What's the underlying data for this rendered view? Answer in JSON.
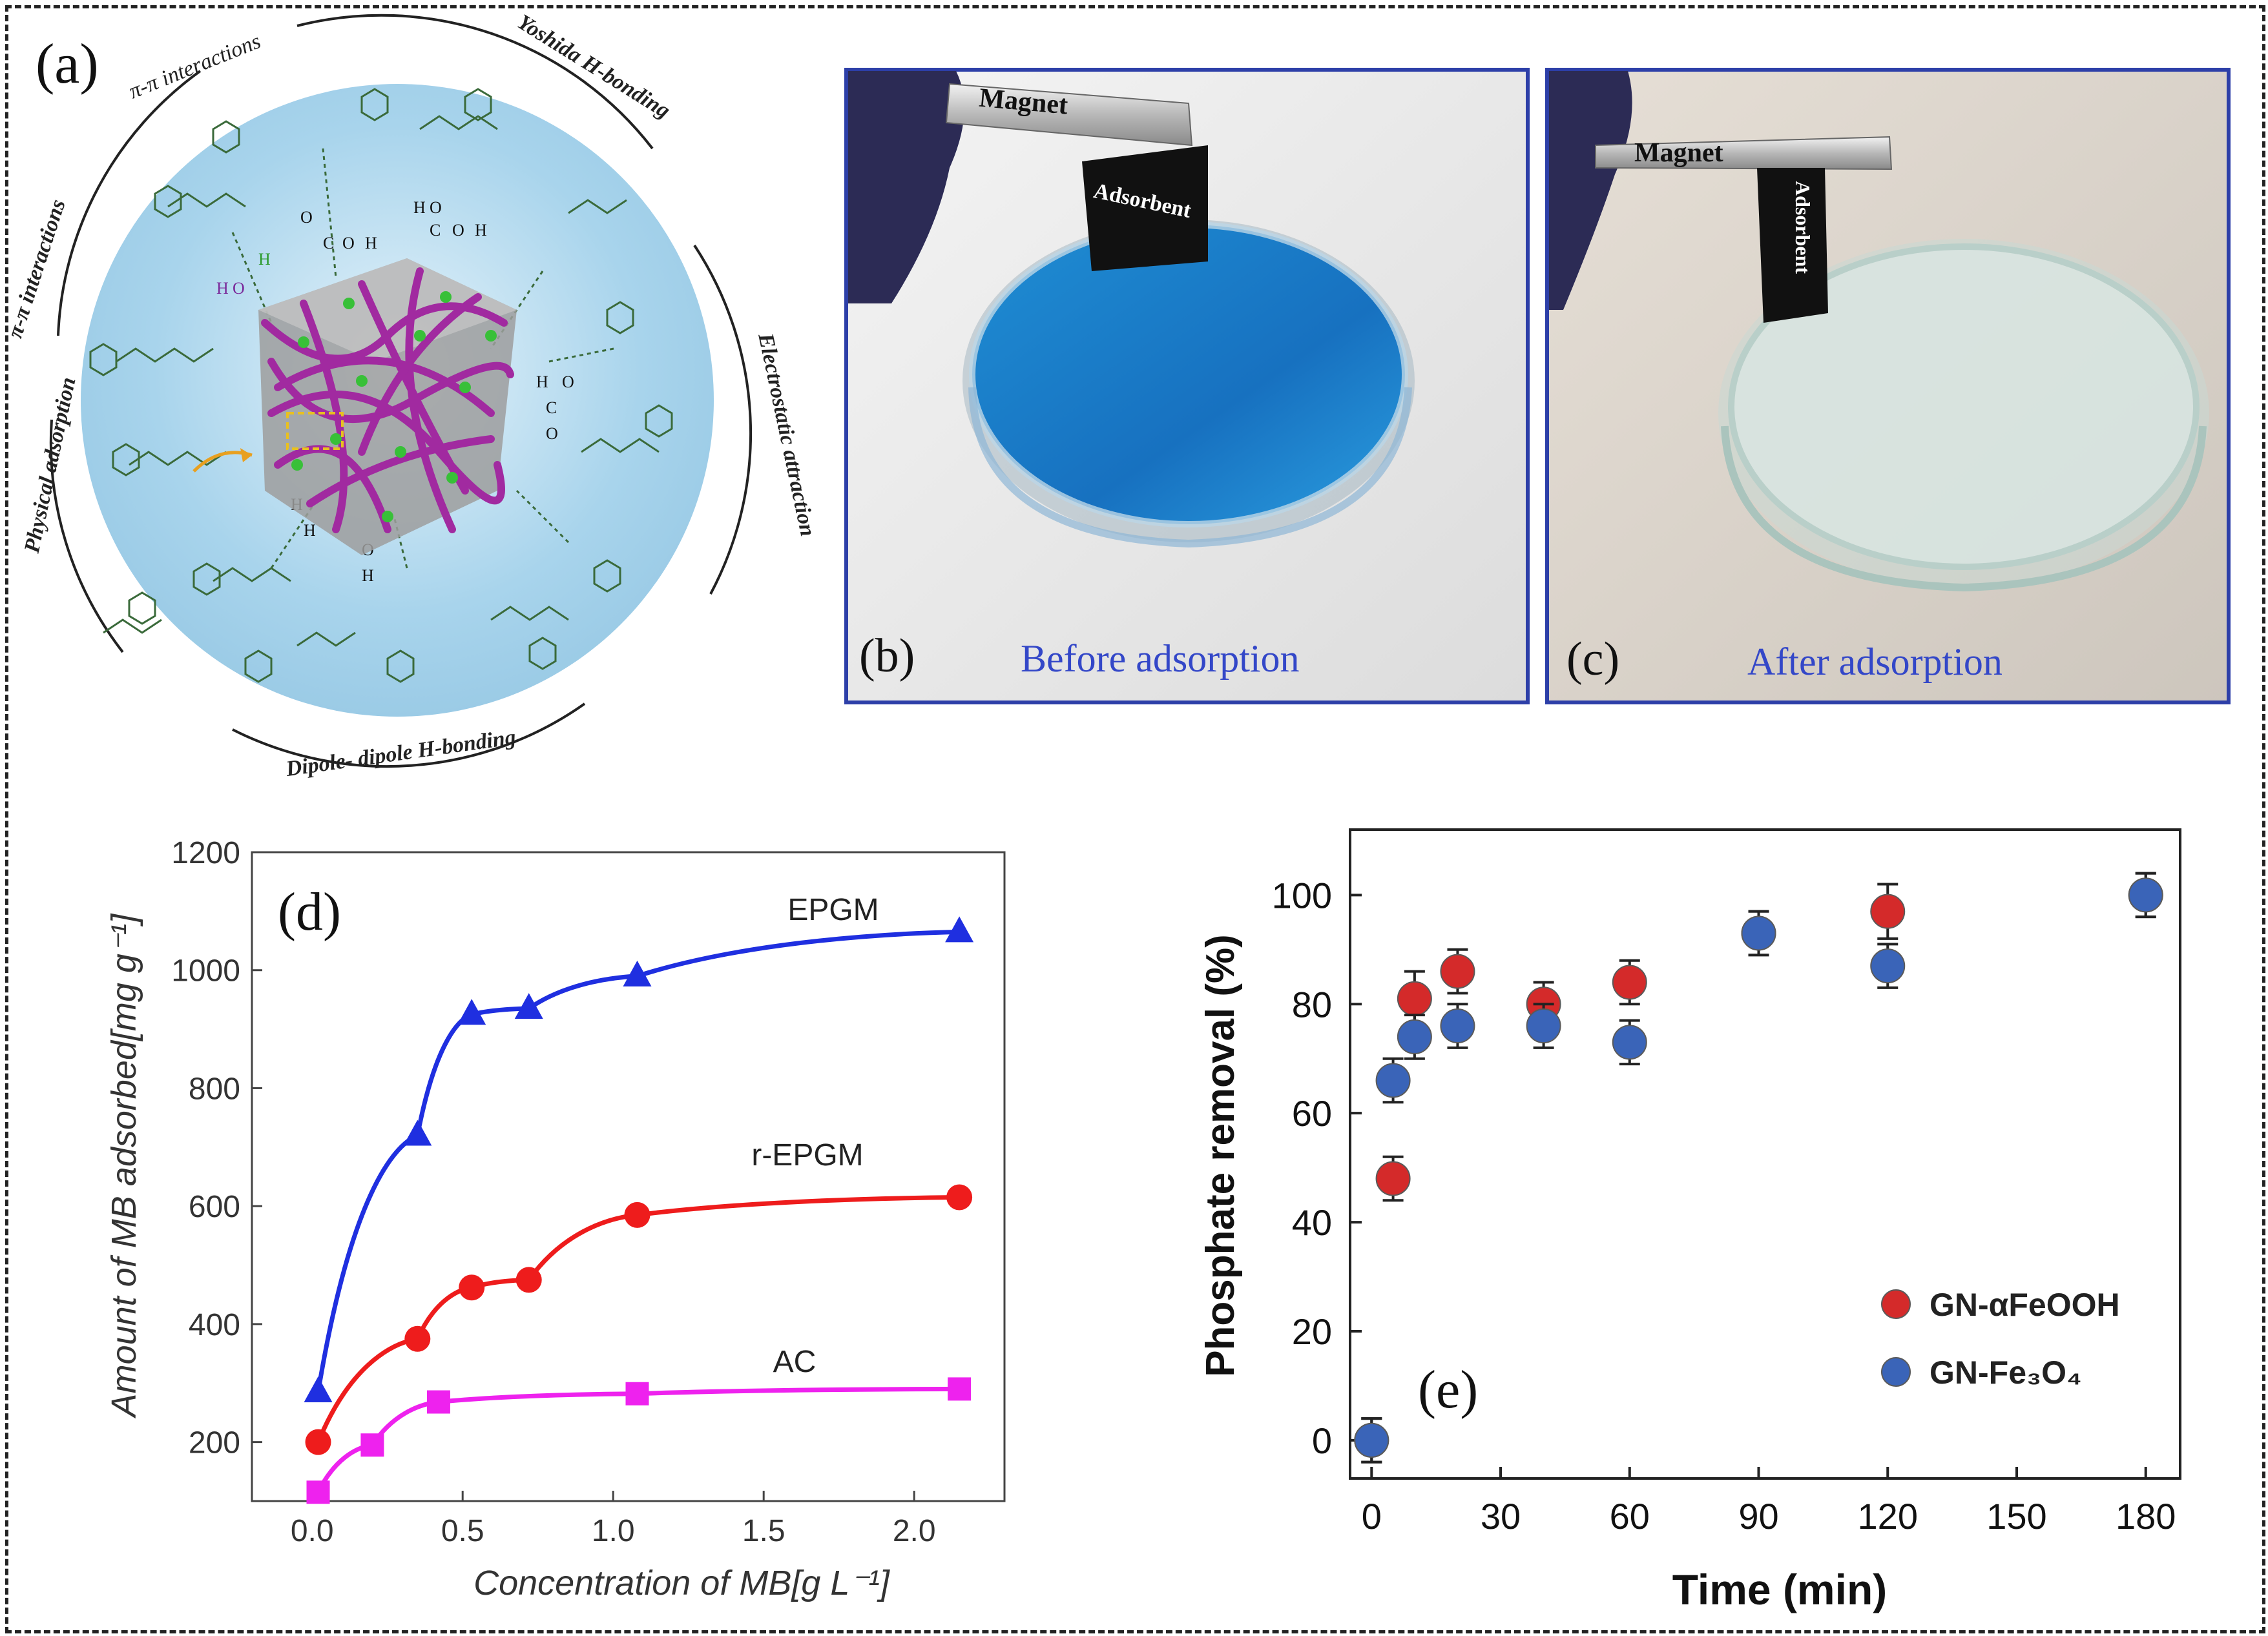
{
  "panels": {
    "a": {
      "label": "(a)",
      "arc_labels": [
        "π-π interactions",
        "Yoshida H-bonding",
        "Electrostatic attraction",
        "Dipole- dipole H-bonding",
        "Physical adsorption",
        "π-π interactions"
      ],
      "chem_labels": [
        "O",
        "C",
        "O",
        "H",
        "H",
        "O",
        "C",
        "O",
        "H",
        "H",
        "O",
        "H",
        "H",
        "O",
        "C",
        "O",
        "H",
        "H",
        "O",
        "H"
      ]
    },
    "b": {
      "label": "(b)",
      "caption": "Before adsorption",
      "magnet_label": "Magnet",
      "adsorbent_label": "Adsorbent"
    },
    "c": {
      "label": "(c)",
      "caption": "After adsorption",
      "magnet_label": "Magnet",
      "adsorbent_label": "Adsorbent"
    }
  },
  "colors": {
    "photo_border": "#2d3fa8",
    "caption": "#3347c8",
    "epgm": "#1f2fe0",
    "repgm": "#ee1c1c",
    "ac": "#ee22ee",
    "gn_feooh": "#d42a2a",
    "gn_fe3o4": "#3a64b8"
  },
  "chart_data": [
    {
      "panel_label": "(d)",
      "type": "scatter",
      "xlabel": "Concentration of MB[g L⁻¹]",
      "ylabel": "Amount of MB adsorbed[mg g⁻¹]",
      "xlim": [
        -0.2,
        2.3
      ],
      "ylim": [
        100,
        1200
      ],
      "xticks": [
        "0.0",
        "0.5",
        "1.0",
        "1.5",
        "2.0"
      ],
      "yticks": [
        "200",
        "400",
        "600",
        "800",
        "1000",
        "1200"
      ],
      "series": [
        {
          "name": "EPGM",
          "marker": "triangle",
          "fitted_curve": true,
          "x": [
            0.02,
            0.35,
            0.53,
            0.72,
            1.08,
            2.15
          ],
          "y": [
            285,
            720,
            925,
            935,
            990,
            1065
          ]
        },
        {
          "name": "r-EPGM",
          "marker": "circle",
          "fitted_curve": true,
          "x": [
            0.02,
            0.35,
            0.53,
            0.72,
            1.08,
            2.15
          ],
          "y": [
            200,
            375,
            462,
            475,
            585,
            615
          ]
        },
        {
          "name": "AC",
          "marker": "square",
          "fitted_curve": true,
          "x": [
            0.02,
            0.2,
            0.42,
            1.08,
            2.15
          ],
          "y": [
            115,
            195,
            268,
            282,
            290
          ]
        }
      ]
    },
    {
      "panel_label": "(e)",
      "type": "scatter",
      "xlabel": "Time (min)",
      "ylabel": "Phosphate removal (%)",
      "xlim": [
        -5,
        188
      ],
      "ylim": [
        -7,
        112
      ],
      "xticks": [
        "0",
        "30",
        "60",
        "90",
        "120",
        "150",
        "180"
      ],
      "yticks": [
        "0",
        "20",
        "40",
        "60",
        "80",
        "100"
      ],
      "legend_position": "bottom-right",
      "series": [
        {
          "name": "GN-αFeOOH",
          "marker": "circle",
          "x": [
            0,
            5,
            10,
            20,
            40,
            60,
            90,
            120,
            180
          ],
          "y": [
            0,
            48,
            81,
            86,
            80,
            84,
            93,
            97,
            100
          ],
          "error": [
            4,
            4,
            5,
            4,
            4,
            4,
            4,
            5,
            4
          ]
        },
        {
          "name": "GN-Fe₃O₄",
          "marker": "circle",
          "x": [
            0,
            5,
            10,
            20,
            40,
            60,
            90,
            120,
            180
          ],
          "y": [
            0,
            66,
            74,
            76,
            76,
            73,
            93,
            87,
            100
          ],
          "error": [
            4,
            4,
            4,
            4,
            4,
            4,
            4,
            4,
            4
          ]
        }
      ]
    }
  ]
}
